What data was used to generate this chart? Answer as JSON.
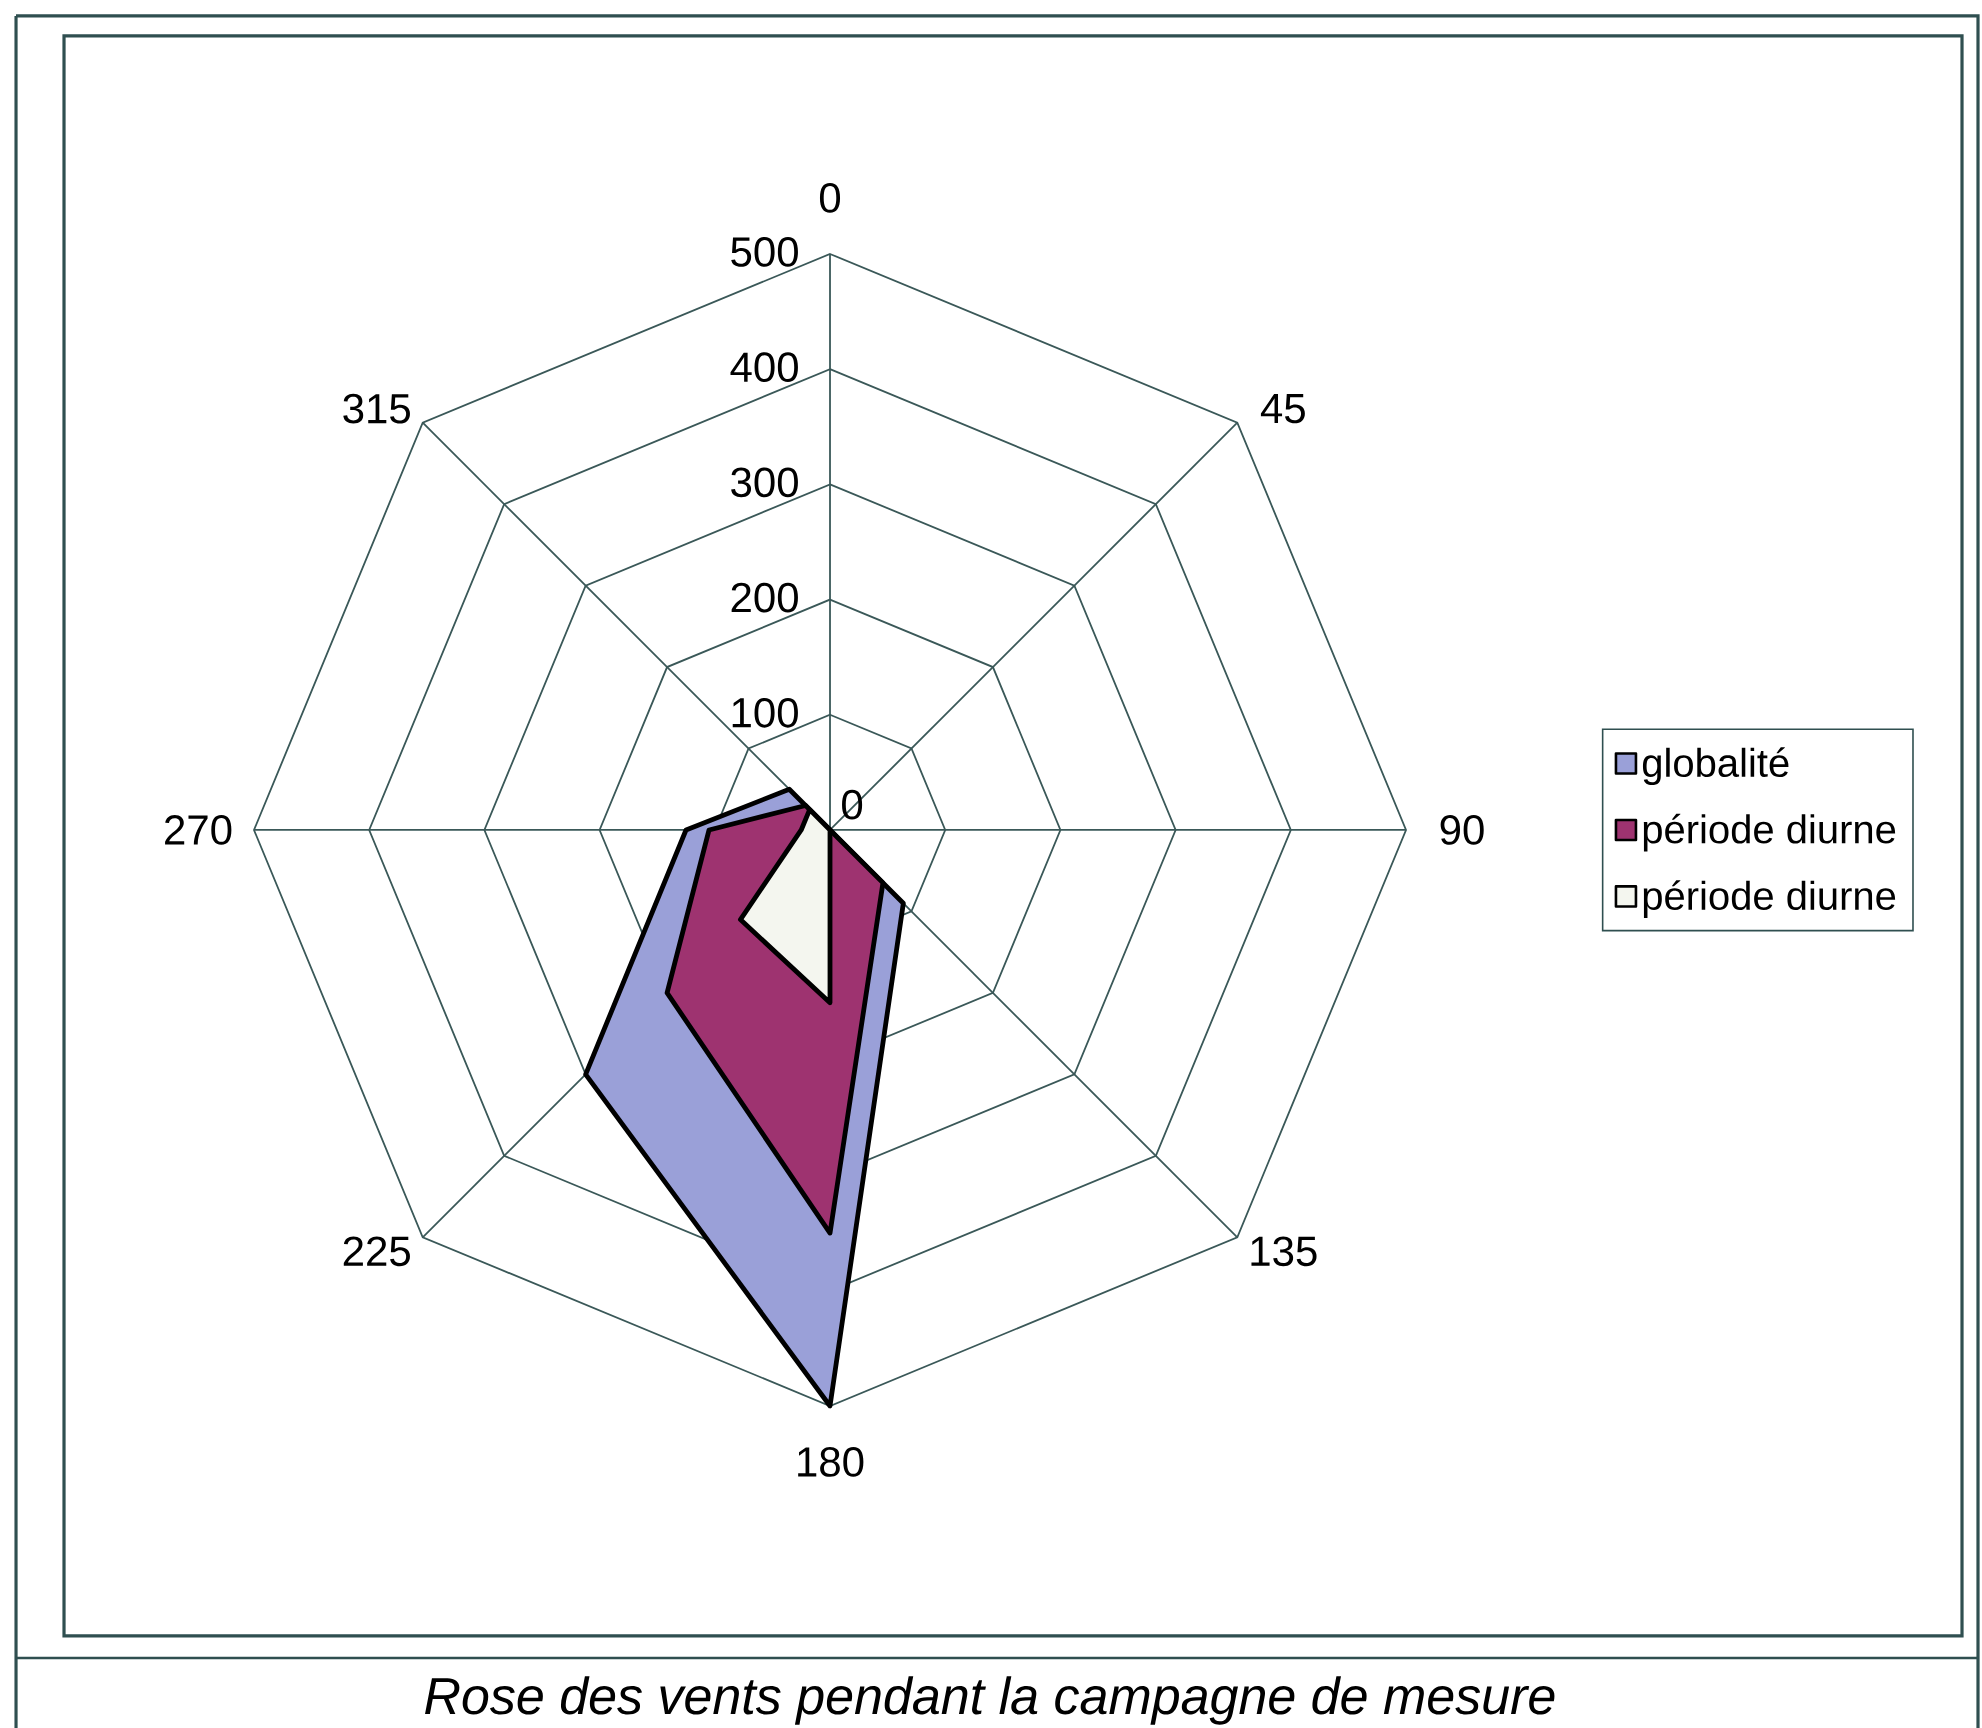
{
  "chart_data": {
    "type": "radar",
    "title": "Rose des vents pendant la campagne de mesure",
    "categories": [
      "0",
      "45",
      "90",
      "135",
      "180",
      "225",
      "270",
      "315"
    ],
    "series": [
      {
        "name": "globalité",
        "color": "#9aa0d8",
        "values": [
          0,
          0,
          0,
          90,
          500,
          300,
          125,
          50
        ]
      },
      {
        "name": "période diurne",
        "color": "#9e3370",
        "values": [
          0,
          0,
          0,
          65,
          350,
          200,
          105,
          30
        ]
      },
      {
        "name": "période diurne",
        "color": "#f4f6ef",
        "values": [
          0,
          0,
          0,
          0,
          150,
          110,
          25,
          25
        ]
      }
    ],
    "ylim": [
      0,
      500
    ],
    "yticks": [
      0,
      100,
      200,
      300,
      400,
      500
    ],
    "grid": true,
    "legend": "right"
  }
}
